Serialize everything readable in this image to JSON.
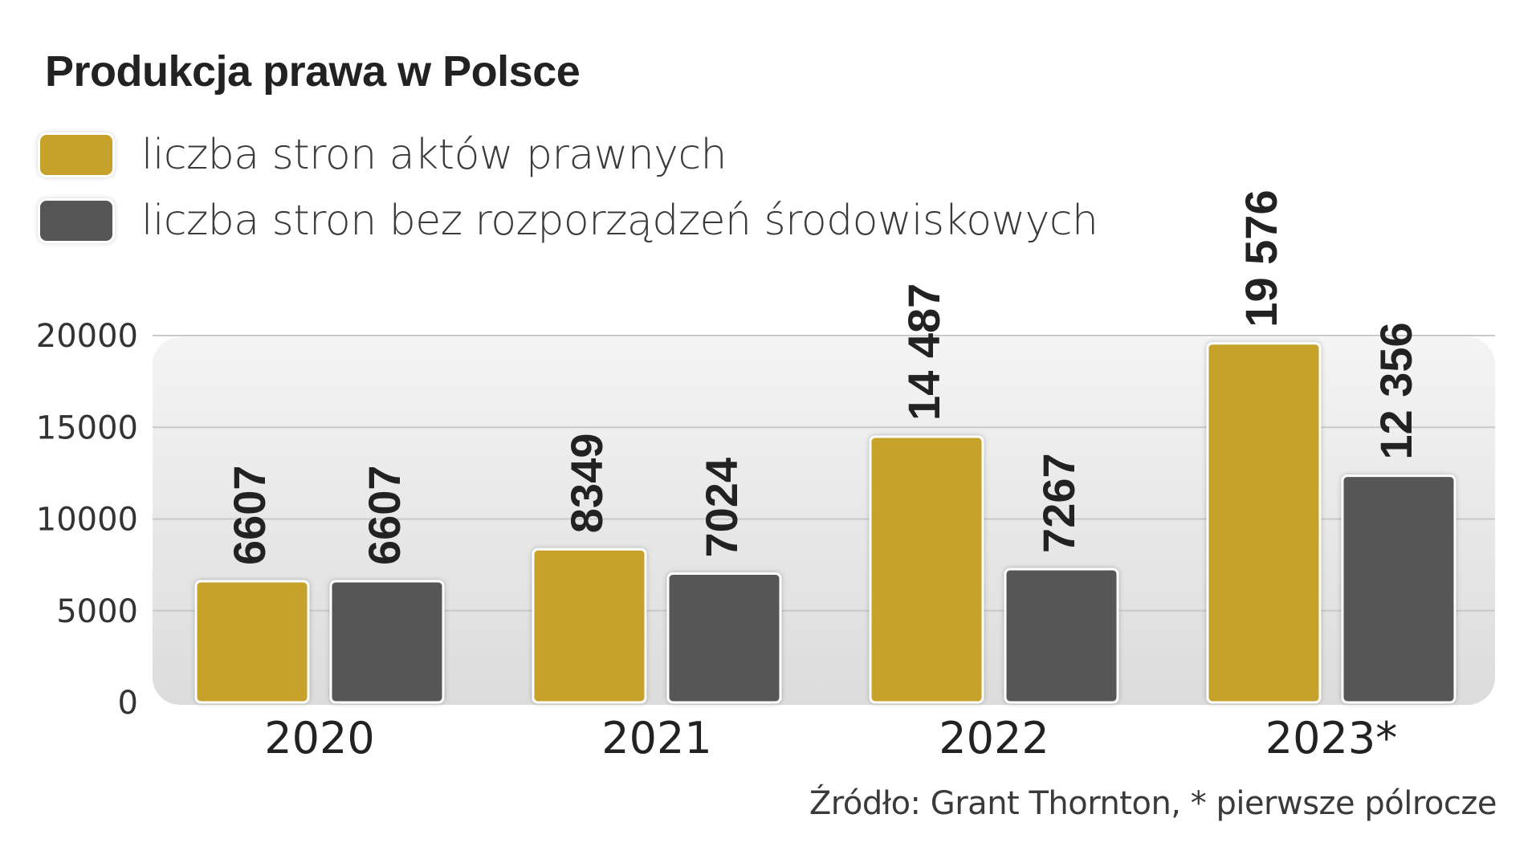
{
  "chart_data": {
    "type": "bar",
    "title": "Produkcja prawa w Polsce",
    "categories": [
      "2020",
      "2021",
      "2022",
      "2023*"
    ],
    "series": [
      {
        "name": "liczba stron aktów prawnych",
        "color": "#C6A22A",
        "values": [
          6607,
          8349,
          14487,
          19576
        ],
        "labels": [
          "6607",
          "8349",
          "14 487",
          "19 576"
        ]
      },
      {
        "name": "liczba stron bez rozporządzeń środowiskowych",
        "color": "#565656",
        "values": [
          6607,
          7024,
          7267,
          12356
        ],
        "labels": [
          "6607",
          "7024",
          "7267",
          "12 356"
        ]
      }
    ],
    "y_ticks": [
      "0",
      "5000",
      "10000",
      "15000",
      "20000"
    ],
    "ylim": [
      0,
      20000
    ],
    "grid": true,
    "legend_position": "top-left"
  },
  "source": "Źródło: Grant Thornton, *  pierwsze pólrocze"
}
